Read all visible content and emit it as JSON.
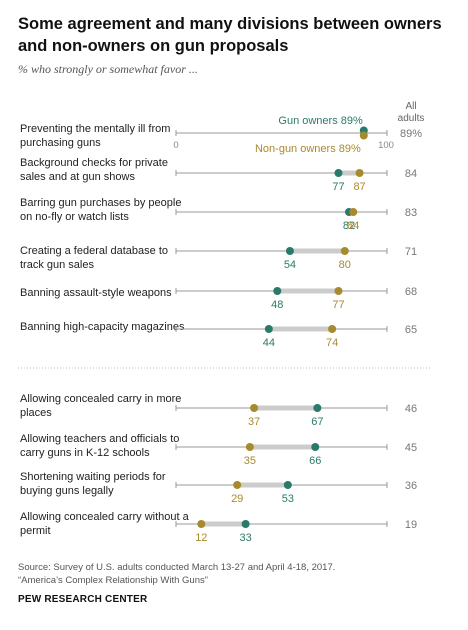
{
  "header": {
    "title": "Some agreement and many divisions between owners and non-owners on gun proposals",
    "subtitle": "% who strongly or somewhat favor ..."
  },
  "all_adults_header": [
    "All",
    "adults"
  ],
  "chart_data": {
    "type": "dot",
    "xlim": [
      0,
      100
    ],
    "axis_ticks": [
      "0",
      "100"
    ],
    "legend": {
      "owners_label": "Gun owners 89%",
      "nonowners_label": "Non-gun owners 89%"
    },
    "colors": {
      "owners": "#2a7a6a",
      "nonowners": "#a88a2e",
      "bar": "#cccccc",
      "axis": "#999999",
      "all": "#777777",
      "divider": "#bbbbbb"
    },
    "items": [
      {
        "label": "Preventing the mentally ill from purchasing guns",
        "owners": 89,
        "nonowners": 89,
        "all": 89,
        "all_label": "89%"
      },
      {
        "label": "Background checks for private sales and at gun shows",
        "owners": 77,
        "nonowners": 87,
        "all": 84,
        "all_label": "84"
      },
      {
        "label": "Barring gun purchases by people on no-fly or watch lists",
        "owners": 82,
        "nonowners": 84,
        "all": 83,
        "all_label": "83"
      },
      {
        "label": "Creating a federal database to track gun sales",
        "owners": 54,
        "nonowners": 80,
        "all": 71,
        "all_label": "71"
      },
      {
        "label": "Banning assault-style weapons",
        "owners": 48,
        "nonowners": 77,
        "all": 68,
        "all_label": "68"
      },
      {
        "label": "Banning high-capacity magazines",
        "owners": 44,
        "nonowners": 74,
        "all": 65,
        "all_label": "65"
      },
      {
        "label": "Allowing concealed carry in more places",
        "owners": 67,
        "nonowners": 37,
        "all": 46,
        "all_label": "46"
      },
      {
        "label": "Allowing teachers and officials to carry guns in K-12 schools",
        "owners": 66,
        "nonowners": 35,
        "all": 45,
        "all_label": "45"
      },
      {
        "label": "Shortening waiting periods for buying guns legally",
        "owners": 53,
        "nonowners": 29,
        "all": 36,
        "all_label": "36"
      },
      {
        "label": "Allowing concealed carry without a permit",
        "owners": 33,
        "nonowners": 12,
        "all": 19,
        "all_label": "19"
      }
    ]
  },
  "footer": {
    "source_line1": "Source: Survey of U.S. adults conducted March 13-27 and April 4-18, 2017.",
    "source_line2": "“America’s Complex Relationship With Guns”",
    "brand": "PEW RESEARCH CENTER"
  }
}
